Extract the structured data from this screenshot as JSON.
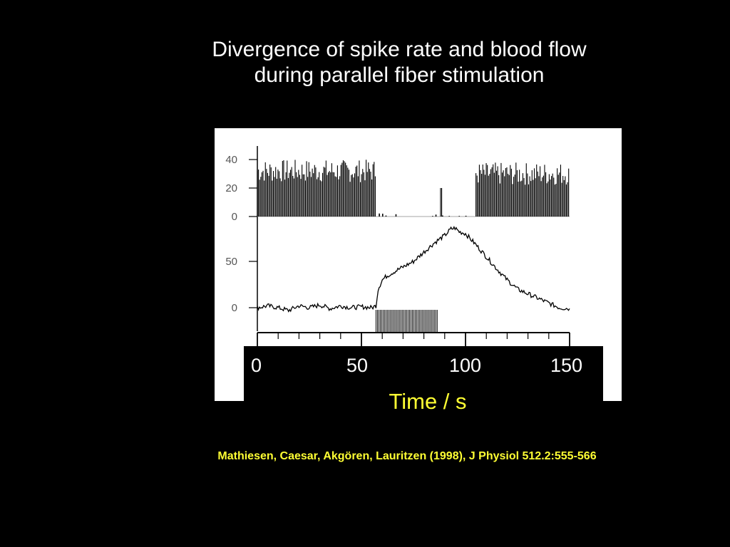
{
  "slide": {
    "title_line1": "Divergence of spike rate and blood flow",
    "title_line2": "during parallel fiber stimulation",
    "citation": "Mathiesen, Caesar, Akgören, Lauritzen (1998), J Physiol 512.2:555-566"
  },
  "colors": {
    "background": "#000000",
    "title": "#ffffff",
    "accent_yellow": "#ffff33",
    "figure_bg": "#ffffff",
    "trace": "#000000"
  },
  "chart_data": {
    "type": "line",
    "xlabel": "Time / s",
    "xlim": [
      0,
      150
    ],
    "x_ticks": [
      "0",
      "50",
      "100",
      "150"
    ],
    "panels": [
      {
        "name": "spike-rate",
        "type": "bar",
        "y_ticks": [
          "40",
          "20",
          "0"
        ],
        "ylim": [
          0,
          45
        ],
        "segments": [
          {
            "x_start": 0,
            "x_end": 57,
            "mean": 32,
            "jitter": 8
          },
          {
            "x_start": 57,
            "x_end": 87,
            "mean": 1.5,
            "jitter": 1.5
          },
          {
            "x_start": 88,
            "x_end": 89,
            "mean": 20,
            "jitter": 0
          },
          {
            "x_start": 89,
            "x_end": 101,
            "mean": 0.5,
            "jitter": 0.5
          },
          {
            "x_start": 105,
            "x_end": 150,
            "mean": 30,
            "jitter": 8
          }
        ]
      },
      {
        "name": "blood-flow",
        "type": "line",
        "y_ticks": [
          "50",
          "0"
        ],
        "ylim": [
          -10,
          90
        ],
        "x": [
          0,
          5,
          10,
          15,
          20,
          25,
          30,
          35,
          40,
          45,
          50,
          55,
          57,
          58,
          60,
          62,
          65,
          70,
          75,
          80,
          85,
          90,
          93,
          95,
          97,
          100,
          105,
          110,
          115,
          120,
          125,
          130,
          135,
          140,
          145,
          150
        ],
        "values": [
          0,
          2,
          0,
          -3,
          2,
          0,
          3,
          -1,
          2,
          0,
          1,
          0,
          2,
          20,
          30,
          34,
          38,
          44,
          50,
          60,
          70,
          78,
          85,
          86,
          82,
          80,
          68,
          55,
          42,
          30,
          20,
          15,
          10,
          5,
          0,
          -1
        ]
      }
    ],
    "stimulation": {
      "x_start": 57,
      "x_end": 87
    }
  }
}
